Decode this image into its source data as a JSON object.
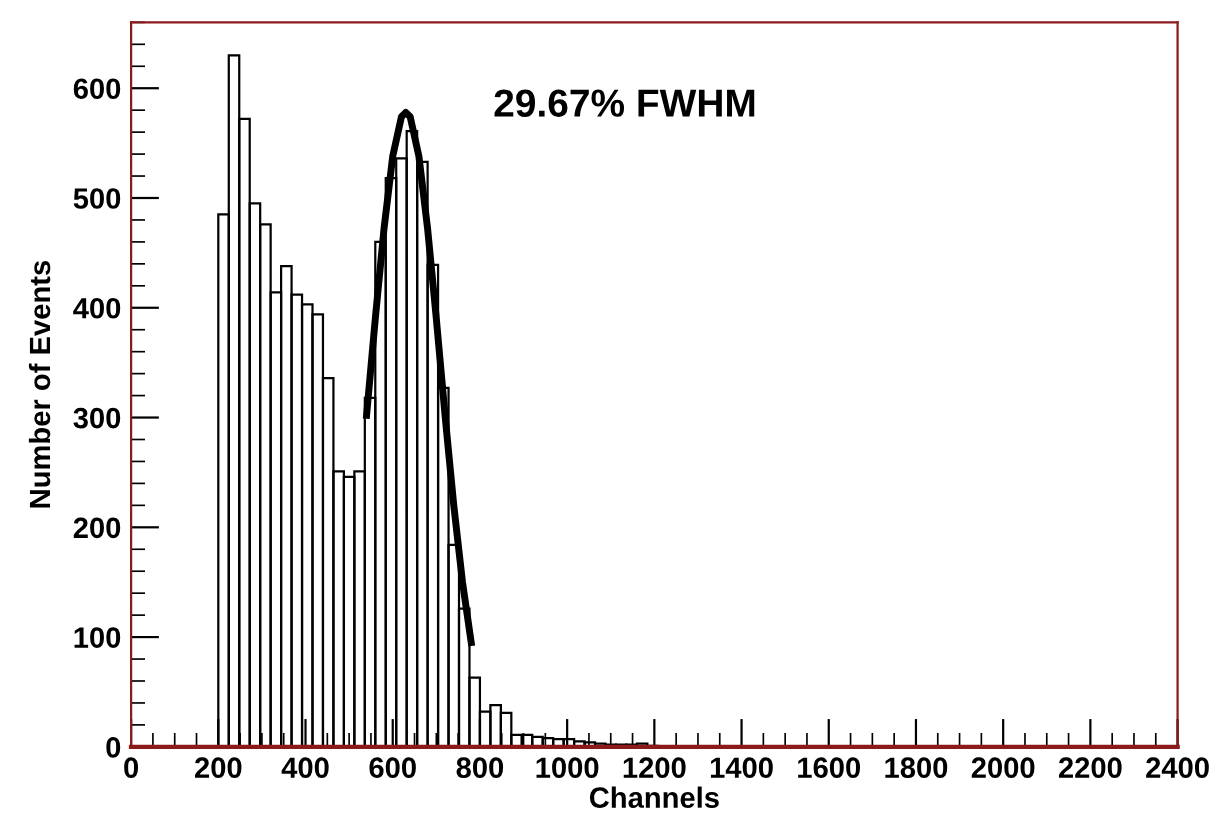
{
  "chart_data": {
    "type": "histogram",
    "xlabel": "Channels",
    "ylabel": "Number of Events",
    "annotations": [
      "29.67% FWHM"
    ],
    "color": "#000000",
    "bins": [
      200,
      224,
      248,
      272,
      296,
      320,
      344,
      368,
      392,
      416,
      440,
      464,
      488,
      512,
      536,
      560,
      584,
      608,
      632,
      656,
      680,
      704,
      728,
      752,
      776,
      800,
      824,
      848,
      872,
      896,
      920,
      944,
      968,
      992,
      1016,
      1040,
      1064,
      1088,
      1112,
      1136,
      1160,
      1184,
      1208
    ],
    "values": [
      485,
      630,
      572,
      495,
      476,
      414,
      438,
      412,
      403,
      394,
      336,
      251,
      246,
      251,
      318,
      460,
      518,
      536,
      561,
      533,
      439,
      327,
      184,
      126,
      63,
      32,
      38,
      31,
      11,
      11,
      9,
      8,
      7,
      7,
      5,
      4,
      3,
      2,
      2,
      2,
      3,
      1
    ],
    "series": [
      {
        "type": "line",
        "color": "#000000",
        "x": [
          540,
          560,
          580,
          600,
          620,
          630,
          640,
          660,
          680,
          700,
          720,
          740,
          760,
          780
        ],
        "values": [
          302,
          390,
          472,
          538,
          574,
          578,
          574,
          538,
          472,
          390,
          302,
          220,
          150,
          95
        ]
      }
    ],
    "xlim": [
      0,
      2400
    ],
    "xticks": [
      0,
      200,
      400,
      600,
      800,
      1000,
      1200,
      1400,
      1600,
      1800,
      2000,
      2200,
      2400
    ],
    "ylim": [
      0,
      660
    ],
    "yticks": [
      0,
      100,
      200,
      300,
      400,
      500,
      600
    ],
    "grid": false,
    "legend": false
  }
}
